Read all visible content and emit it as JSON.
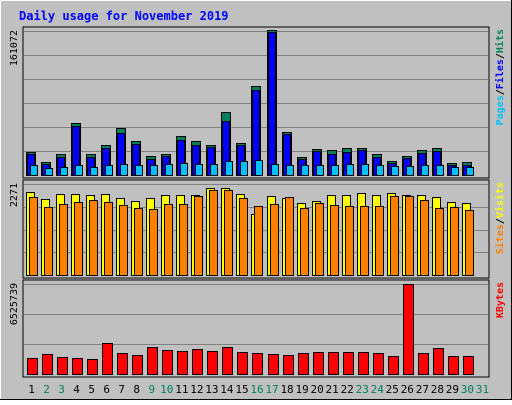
{
  "chart_data": {
    "type": "bar",
    "title": "Daily usage for November 2019",
    "days": [
      "1",
      "2",
      "3",
      "4",
      "5",
      "6",
      "7",
      "8",
      "9",
      "10",
      "11",
      "12",
      "13",
      "14",
      "15",
      "16",
      "17",
      "18",
      "19",
      "20",
      "21",
      "22",
      "23",
      "24",
      "25",
      "26",
      "27",
      "28",
      "29",
      "30",
      "31"
    ],
    "weekend_days": [
      "2",
      "3",
      "9",
      "10",
      "16",
      "17",
      "23",
      "24",
      "30",
      "31"
    ],
    "panels": [
      {
        "id": "hits-files-pages",
        "max_label": "161072",
        "ylim": [
          0,
          161072
        ],
        "side_label": [
          "Pages",
          "/",
          "Files",
          "/",
          "Hits"
        ],
        "series": [
          {
            "name": "Hits",
            "color": "#00805c",
            "values": [
              26000,
              14000,
              23000,
              58000,
              23000,
              33000,
              53000,
              38000,
              21000,
              24000,
              44000,
              38000,
              34000,
              70000,
              36000,
              99000,
              162000,
              48000,
              20000,
              29000,
              28000,
              30000,
              30000,
              24000,
              16000,
              21000,
              28000,
              30000,
              13000,
              14000,
              0
            ]
          },
          {
            "name": "Files",
            "color": "#0000ff",
            "values": [
              24000,
              12000,
              20000,
              55000,
              20000,
              30000,
              47000,
              35000,
              18000,
              21000,
              39000,
              34000,
              31000,
              60000,
              33000,
              95000,
              160000,
              46000,
              18000,
              27000,
              24000,
              26000,
              28000,
              20000,
              13000,
              19000,
              25000,
              27000,
              11000,
              11000,
              0
            ]
          },
          {
            "name": "Pages",
            "color": "#00c0ff",
            "values": [
              11000,
              8000,
              9000,
              11000,
              9000,
              11000,
              12000,
              11000,
              11000,
              12000,
              13000,
              12000,
              12000,
              16000,
              16000,
              17000,
              12000,
              11000,
              11000,
              11000,
              11000,
              12000,
              12000,
              11000,
              10000,
              10000,
              11000,
              11000,
              9000,
              9000,
              0
            ]
          }
        ]
      },
      {
        "id": "visits-sites",
        "max_label": "2271",
        "ylim": [
          0,
          2271
        ],
        "side_label": [
          "Sites",
          "/",
          "Visits"
        ],
        "series": [
          {
            "name": "Visits",
            "color": "#ffff00",
            "values": [
              2080,
              1900,
              2010,
              2010,
              1990,
              2020,
              1920,
              1850,
              1920,
              1990,
              1990,
              1990,
              2180,
              2180,
              2010,
              1520,
              1960,
              1920,
              1790,
              1850,
              1990,
              1990,
              2040,
              1990,
              2040,
              1990,
              1990,
              1940,
              1820,
              1800,
              0
            ]
          },
          {
            "name": "Sites",
            "color": "#ff8000",
            "values": [
              1950,
              1690,
              1780,
              1830,
              1880,
              1810,
              1750,
              1660,
              1650,
              1760,
              1780,
              1980,
              2130,
              2130,
              1930,
              1720,
              1770,
              1940,
              1680,
              1800,
              1740,
              1730,
              1720,
              1730,
              1980,
              1980,
              1860,
              1680,
              1690,
              1610,
              0
            ]
          }
        ]
      },
      {
        "id": "kbytes",
        "max_label": "6525739",
        "ylim": [
          0,
          6525739
        ],
        "side_label": [
          "KBytes"
        ],
        "series": [
          {
            "name": "KBytes",
            "color": "#ff0000",
            "values": [
              1180000,
              1430000,
              1240000,
              1130000,
              1090000,
              2270000,
              1520000,
              1360000,
              1960000,
              1750000,
              1700000,
              1790000,
              1660000,
              1960000,
              1560000,
              1540000,
              1430000,
              1380000,
              1530000,
              1580000,
              1560000,
              1590000,
              1620000,
              1530000,
              1300000,
              6525739,
              1540000,
              1850000,
              1310000,
              1300000,
              0
            ]
          }
        ]
      }
    ]
  }
}
